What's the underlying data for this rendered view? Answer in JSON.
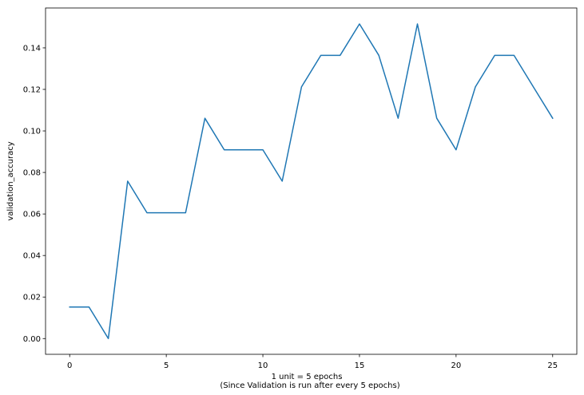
{
  "chart_data": {
    "type": "line",
    "title": "",
    "xlabel_lines": [
      "1 unit = 5 epochs",
      "(Since Validation is run after every 5 epochs)"
    ],
    "ylabel": "validation_accuracy",
    "xlim": [
      -1.25,
      26.25
    ],
    "ylim": [
      -0.00758,
      0.1592
    ],
    "xticks": [
      0,
      5,
      10,
      15,
      20,
      25
    ],
    "yticks": [
      0.0,
      0.02,
      0.04,
      0.06,
      0.08,
      0.1,
      0.12,
      0.14
    ],
    "xtick_labels": [
      "0",
      "5",
      "10",
      "15",
      "20",
      "25"
    ],
    "ytick_labels": [
      "0.00",
      "0.02",
      "0.04",
      "0.06",
      "0.08",
      "0.10",
      "0.12",
      "0.14"
    ],
    "grid": false,
    "legend": "none",
    "series": [
      {
        "color": "#1f77b4",
        "x": [
          0,
          1,
          2,
          3,
          4,
          5,
          6,
          7,
          8,
          9,
          10,
          11,
          12,
          13,
          14,
          15,
          16,
          17,
          18,
          19,
          20,
          21,
          22,
          23,
          24,
          25
        ],
        "values": [
          0.0152,
          0.0152,
          0.0,
          0.0758,
          0.0606,
          0.0606,
          0.0606,
          0.1061,
          0.0909,
          0.0909,
          0.0909,
          0.0758,
          0.1212,
          0.1364,
          0.1364,
          0.1515,
          0.1364,
          0.1061,
          0.1515,
          0.1061,
          0.0909,
          0.1212,
          0.1364,
          0.1364,
          0.1212,
          0.1061
        ]
      }
    ]
  }
}
